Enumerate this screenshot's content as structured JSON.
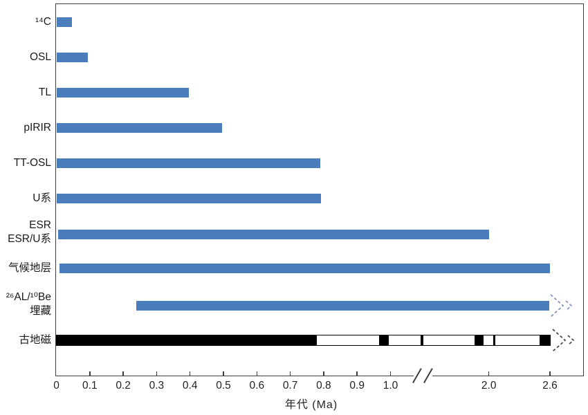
{
  "chart_data": {
    "type": "bar",
    "subtype": "horizontal-range-bars",
    "title": "",
    "xlabel": "年代 (Ma)",
    "x_axis": {
      "ticks": [
        {
          "value": 0,
          "label": "0"
        },
        {
          "value": 0.1,
          "label": "0.1"
        },
        {
          "value": 0.2,
          "label": "0.2"
        },
        {
          "value": 0.3,
          "label": "0.3"
        },
        {
          "value": 0.4,
          "label": "0.4"
        },
        {
          "value": 0.5,
          "label": "0.5"
        },
        {
          "value": 0.6,
          "label": "0.6"
        },
        {
          "value": 0.7,
          "label": "0.7"
        },
        {
          "value": 0.8,
          "label": "0.8"
        },
        {
          "value": 0.9,
          "label": "0.9"
        },
        {
          "value": 1.0,
          "label": "1.0"
        },
        {
          "value": 2.0,
          "label": "2.0"
        },
        {
          "value": 2.6,
          "label": "2.6"
        }
      ],
      "axis_break_between": [
        1.0,
        2.0
      ],
      "range": [
        0,
        2.6
      ]
    },
    "rows": [
      {
        "name": "c14",
        "label_lines": [
          "¹⁴C"
        ],
        "start_ma": 0,
        "end_ma": 0.047,
        "bar": "blue",
        "open_ended": false
      },
      {
        "name": "osl",
        "label_lines": [
          "OSL"
        ],
        "start_ma": 0,
        "end_ma": 0.094,
        "bar": "blue",
        "open_ended": false
      },
      {
        "name": "tl",
        "label_lines": [
          "TL"
        ],
        "start_ma": 0,
        "end_ma": 0.397,
        "bar": "blue",
        "open_ended": false
      },
      {
        "name": "pirir",
        "label_lines": [
          "pIRIR"
        ],
        "start_ma": 0,
        "end_ma": 0.496,
        "bar": "blue",
        "open_ended": false
      },
      {
        "name": "tt-osl",
        "label_lines": [
          "TT-OSL"
        ],
        "start_ma": 0,
        "end_ma": 0.79,
        "bar": "blue",
        "open_ended": false
      },
      {
        "name": "u-series",
        "label_lines": [
          "U系"
        ],
        "start_ma": 0,
        "end_ma": 0.792,
        "bar": "blue",
        "open_ended": false
      },
      {
        "name": "esr",
        "label_lines": [
          "ESR",
          "ESR/U系"
        ],
        "start_ma": 0.005,
        "end_ma": 2.0,
        "bar": "blue",
        "open_ended": false
      },
      {
        "name": "climate",
        "label_lines": [
          "气候地层"
        ],
        "start_ma": 0.01,
        "end_ma": 2.6,
        "bar": "blue",
        "open_ended": false
      },
      {
        "name": "al-be",
        "label_lines": [
          "²⁶AL/¹⁰Be",
          "埋藏"
        ],
        "start_ma": 0.24,
        "end_ma": 2.59,
        "bar": "blue",
        "open_ended": true
      },
      {
        "name": "paleomag",
        "label_lines": [
          "古地磁"
        ],
        "start_ma": 0,
        "end_ma": 2.6,
        "bar": "polarity",
        "open_ended": true,
        "normal_polarity_segments_ma": [
          [
            0,
            0.78
          ],
          [
            0.965,
            0.995
          ],
          [
            1.091,
            1.098
          ],
          [
            1.8,
            1.93
          ],
          [
            2.04,
            2.06
          ],
          [
            2.5,
            2.6
          ]
        ]
      }
    ],
    "colors": {
      "bar_blue": "#4B7CBC",
      "polarity_normal": "#000000",
      "polarity_reversed": "#FFFFFF",
      "axis": "#3C3C3C",
      "arrow_blue_gray": "#8095B8",
      "arrow_dark_gray": "#4C4C4C"
    },
    "legend": "none",
    "grid": false
  }
}
